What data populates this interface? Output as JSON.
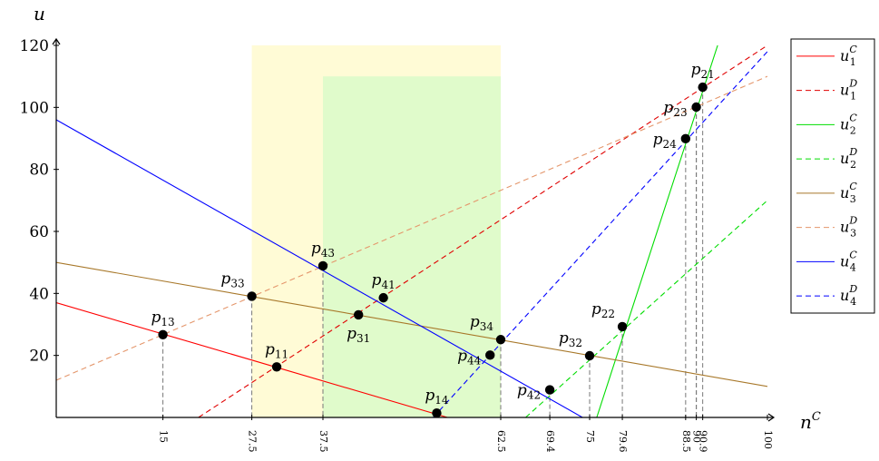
{
  "chart_data": {
    "type": "line",
    "xlabel": "n",
    "xlabel_sup": "C",
    "ylabel": "u",
    "xlim": [
      0,
      100
    ],
    "ylim": [
      0,
      120
    ],
    "yticks": [
      "20",
      "40",
      "60",
      "80",
      "100",
      "120"
    ],
    "xticks": [
      {
        "value": 15,
        "label": "15"
      },
      {
        "value": 27.5,
        "label": "27.5"
      },
      {
        "value": 37.5,
        "label": "37.5"
      },
      {
        "value": 62.5,
        "label": "62.5"
      },
      {
        "value": 69.4,
        "label": "69.4"
      },
      {
        "value": 75,
        "label": "75"
      },
      {
        "value": 79.6,
        "label": "79.6"
      },
      {
        "value": 88.5,
        "label": "88.5"
      },
      {
        "value": 90,
        "label": "90"
      },
      {
        "value": 90.9,
        "label": "90.9"
      },
      {
        "value": 100,
        "label": "100"
      }
    ],
    "regions": [
      {
        "x": [
          27.5,
          62.5
        ],
        "y": [
          0,
          120
        ],
        "color": "#fffbd6"
      },
      {
        "x": [
          37.5,
          62.5
        ],
        "y": [
          0,
          110
        ],
        "color": "#e0fbcb"
      }
    ],
    "series": [
      {
        "sub": "1",
        "sup": "C",
        "color": "#ff0000",
        "dash": false,
        "points": [
          [
            0,
            37
          ],
          [
            55,
            0
          ]
        ]
      },
      {
        "sub": "1",
        "sup": "D",
        "color": "#e00000",
        "dash": true,
        "points": [
          [
            20,
            0
          ],
          [
            100,
            120
          ]
        ]
      },
      {
        "sub": "2",
        "sup": "C",
        "color": "#00dd00",
        "dash": false,
        "points": [
          [
            76,
            0
          ],
          [
            93,
            120
          ]
        ]
      },
      {
        "sub": "2",
        "sup": "D",
        "color": "#00dd00",
        "dash": true,
        "points": [
          [
            66,
            0
          ],
          [
            100,
            70
          ]
        ]
      },
      {
        "sub": "3",
        "sup": "C",
        "color": "#a8782a",
        "dash": false,
        "points": [
          [
            0,
            50
          ],
          [
            100,
            10
          ]
        ]
      },
      {
        "sub": "3",
        "sup": "D",
        "color": "#e4966b",
        "dash": true,
        "points": [
          [
            0,
            12
          ],
          [
            100,
            110
          ]
        ]
      },
      {
        "sub": "4",
        "sup": "C",
        "color": "#0000ff",
        "dash": false,
        "points": [
          [
            0,
            96
          ],
          [
            74,
            0
          ]
        ]
      },
      {
        "sub": "4",
        "sup": "D",
        "color": "#0000ff",
        "dash": true,
        "points": [
          [
            53,
            0
          ],
          [
            100,
            118
          ]
        ]
      }
    ],
    "points": [
      {
        "name": "p",
        "sub": "13",
        "x": 15,
        "y": 26.7,
        "pos": "above",
        "guide": true
      },
      {
        "name": "p",
        "sub": "33",
        "x": 27.5,
        "y": 39.1,
        "pos": "above-left",
        "guide": true
      },
      {
        "name": "p",
        "sub": "11",
        "x": 31,
        "y": 16.3,
        "pos": "above",
        "guide": false
      },
      {
        "name": "p",
        "sub": "43",
        "x": 37.5,
        "y": 48.9,
        "pos": "above",
        "guide": true
      },
      {
        "name": "p",
        "sub": "31",
        "x": 42.5,
        "y": 33.1,
        "pos": "below",
        "guide": false
      },
      {
        "name": "p",
        "sub": "41",
        "x": 46,
        "y": 38.6,
        "pos": "above",
        "guide": false
      },
      {
        "name": "p",
        "sub": "14",
        "x": 53.5,
        "y": 1.4,
        "pos": "above",
        "guide": false
      },
      {
        "name": "p",
        "sub": "44",
        "x": 61,
        "y": 20.1,
        "pos": "left",
        "guide": false
      },
      {
        "name": "p",
        "sub": "34",
        "x": 62.5,
        "y": 25.1,
        "pos": "above-left",
        "guide": true
      },
      {
        "name": "p",
        "sub": "42",
        "x": 69.4,
        "y": 8.9,
        "pos": "left",
        "guide": true
      },
      {
        "name": "p",
        "sub": "32",
        "x": 75,
        "y": 19.9,
        "pos": "above-left",
        "guide": true
      },
      {
        "name": "p",
        "sub": "22",
        "x": 79.6,
        "y": 29.3,
        "pos": "above-left",
        "guide": true
      },
      {
        "name": "p",
        "sub": "24",
        "x": 88.5,
        "y": 89.9,
        "pos": "left",
        "guide": true
      },
      {
        "name": "p",
        "sub": "23",
        "x": 90,
        "y": 100.1,
        "pos": "left",
        "guide": true
      },
      {
        "name": "p",
        "sub": "21",
        "x": 90.9,
        "y": 106.5,
        "pos": "above",
        "guide": true
      }
    ]
  }
}
